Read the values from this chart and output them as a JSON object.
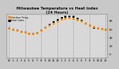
{
  "title": "Milwaukee Temperature vs Heat Index\n(24 Hours)",
  "title_fontsize": 4.0,
  "legend_labels": [
    "Outdoor Temp",
    "Heat Index"
  ],
  "legend_colors": [
    "#FF8C00",
    "#000000"
  ],
  "bg_color": "#c8c8c8",
  "plot_bg": "#d8d8d8",
  "ylim": [
    -10,
    95
  ],
  "grid_color": "#888888",
  "x_hours": [
    0,
    1,
    2,
    3,
    4,
    5,
    6,
    7,
    8,
    9,
    10,
    11,
    12,
    13,
    14,
    15,
    16,
    17,
    18,
    19,
    20,
    21,
    22,
    23,
    24
  ],
  "temp_values": [
    62,
    60,
    57,
    54,
    52,
    50,
    49,
    51,
    57,
    64,
    70,
    75,
    80,
    84,
    86,
    87,
    86,
    83,
    79,
    74,
    70,
    66,
    63,
    61,
    60
  ],
  "heat_values": [
    62,
    60,
    57,
    54,
    52,
    50,
    49,
    51,
    57,
    64,
    71,
    77,
    83,
    87,
    90,
    91,
    90,
    86,
    81,
    75,
    70,
    65,
    63,
    61,
    60
  ],
  "vgrid_positions": [
    0,
    4,
    8,
    12,
    16,
    20,
    24
  ],
  "marker_size": 1.2,
  "tick_fontsize": 2.8,
  "ytick_right": true,
  "yticks": [
    0,
    20,
    40,
    60,
    80
  ],
  "xtick_every": 1
}
